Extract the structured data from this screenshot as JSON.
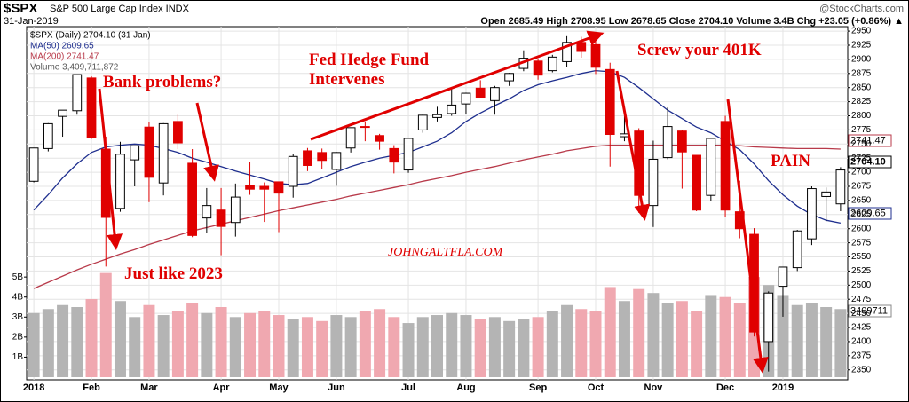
{
  "chart_data": {
    "type": "candlestick",
    "title": "$SPX",
    "subtitle": "S&P 500 Large Cap Index INDX",
    "source": "@StockCharts.com",
    "date": "31-Jan-2019",
    "quote": "Open 2685.49 High 2708.95 Low 2678.65 Close 2704.10 Volume 3.4B Chg +23.05 (+0.86%) ▲",
    "legend": [
      "$SPX (Daily) 2704.10 (31 Jan)",
      "MA(50) 2609.65",
      "MA(200) 2741.47",
      "Volume 3,409,711,872"
    ],
    "price_labels": [
      "2741.47",
      "2704.10",
      "2609.65",
      "3409711"
    ],
    "annotations": [
      "Bank problems?",
      "Just like 2023",
      "Fed Hedge Fund",
      "Intervenes",
      "Screw your 401K",
      "PAIN",
      "JOHNGALTFLA.COM"
    ],
    "categories": [
      "2018",
      null,
      null,
      null,
      "Feb",
      null,
      null,
      null,
      "Mar",
      null,
      null,
      null,
      null,
      "Apr",
      null,
      null,
      null,
      "May",
      null,
      null,
      null,
      "Jun",
      null,
      null,
      null,
      null,
      "Jul",
      null,
      null,
      null,
      "Aug",
      null,
      null,
      null,
      null,
      "Sep",
      null,
      null,
      null,
      "Oct",
      null,
      null,
      null,
      "Nov",
      null,
      null,
      null,
      null,
      "Dec",
      null,
      null,
      null,
      "2019",
      null,
      null,
      null,
      null
    ],
    "open": [
      2684,
      2742,
      2799,
      2809,
      2867,
      2741,
      2636,
      2722,
      2780,
      2681,
      2790,
      2716,
      2619,
      2633,
      2611,
      2676,
      2675,
      2683,
      2675,
      2738,
      2735,
      2705,
      2743,
      2781,
      2765,
      2742,
      2704,
      2775,
      2797,
      2804,
      2821,
      2849,
      2827,
      2862,
      2884,
      2897,
      2880,
      2896,
      2930,
      2926,
      2882,
      2763,
      2773,
      2641,
      2726,
      2773,
      2730,
      2659,
      2790,
      2630,
      2590,
      2400,
      2498,
      2531,
      2582,
      2657,
      2644
    ],
    "high": [
      2743,
      2787,
      2807,
      2873,
      2870,
      2763,
      2754,
      2747,
      2789,
      2787,
      2802,
      2741,
      2672,
      2672,
      2680,
      2718,
      2682,
      2682,
      2732,
      2743,
      2742,
      2736,
      2779,
      2790,
      2768,
      2748,
      2760,
      2802,
      2816,
      2848,
      2841,
      2863,
      2853,
      2876,
      2916,
      2900,
      2908,
      2941,
      2940,
      2939,
      2894,
      2816,
      2778,
      2756,
      2815,
      2775,
      2730,
      2760,
      2800,
      2685,
      2601,
      2489,
      2532,
      2598,
      2675,
      2673,
      2709
    ],
    "low": [
      2682,
      2737,
      2763,
      2802,
      2759,
      2533,
      2630,
      2675,
      2647,
      2659,
      2741,
      2585,
      2593,
      2553,
      2586,
      2660,
      2612,
      2594,
      2655,
      2702,
      2706,
      2676,
      2735,
      2755,
      2740,
      2698,
      2699,
      2770,
      2790,
      2800,
      2803,
      2833,
      2802,
      2853,
      2879,
      2864,
      2877,
      2886,
      2903,
      2874,
      2710,
      2755,
      2628,
      2603,
      2723,
      2671,
      2631,
      2649,
      2621,
      2583,
      2409,
      2347,
      2444,
      2525,
      2571,
      2613,
      2631
    ],
    "close": [
      2743,
      2786,
      2810,
      2873,
      2762,
      2620,
      2732,
      2747,
      2691,
      2786,
      2752,
      2588,
      2641,
      2604,
      2656,
      2670,
      2670,
      2663,
      2728,
      2712,
      2721,
      2735,
      2779,
      2780,
      2755,
      2718,
      2760,
      2801,
      2802,
      2819,
      2840,
      2833,
      2850,
      2875,
      2902,
      2872,
      2904,
      2930,
      2914,
      2886,
      2767,
      2768,
      2659,
      2723,
      2781,
      2736,
      2633,
      2760,
      2633,
      2600,
      2417,
      2486,
      2532,
      2596,
      2671,
      2665,
      2704
    ],
    "up_color": "#000000",
    "down_color": "#e00000",
    "series": [
      {
        "name": "MA(50)",
        "color": "#1f2f8f",
        "values": [
          2633,
          2660,
          2690,
          2715,
          2735,
          2745,
          2748,
          2750,
          2748,
          2742,
          2735,
          2725,
          2718,
          2710,
          2702,
          2695,
          2688,
          2680,
          2678,
          2680,
          2690,
          2700,
          2710,
          2718,
          2725,
          2730,
          2735,
          2745,
          2755,
          2770,
          2790,
          2805,
          2818,
          2830,
          2845,
          2855,
          2862,
          2868,
          2875,
          2880,
          2878,
          2868,
          2850,
          2830,
          2810,
          2795,
          2780,
          2770,
          2755,
          2740,
          2715,
          2685,
          2660,
          2640,
          2625,
          2615,
          2610
        ]
      },
      {
        "name": "MA(200)",
        "color": "#b83a4a",
        "values": [
          2494,
          2505,
          2516,
          2527,
          2537,
          2546,
          2555,
          2563,
          2572,
          2580,
          2588,
          2596,
          2602,
          2608,
          2614,
          2620,
          2626,
          2632,
          2637,
          2642,
          2647,
          2652,
          2658,
          2663,
          2668,
          2673,
          2678,
          2684,
          2689,
          2694,
          2700,
          2705,
          2710,
          2716,
          2722,
          2727,
          2732,
          2738,
          2742,
          2746,
          2748,
          2748,
          2748,
          2748,
          2748,
          2748,
          2748,
          2748,
          2748,
          2747,
          2745,
          2744,
          2743,
          2742,
          2742,
          2742,
          2741
        ]
      }
    ],
    "volume": {
      "name": "Volume",
      "up_color": "#b4b4b4",
      "down_color": "#f0a8b0",
      "values": [
        3.2,
        3.4,
        3.6,
        3.5,
        3.9,
        5.2,
        3.8,
        3.0,
        3.6,
        3.1,
        3.3,
        3.7,
        3.2,
        3.5,
        3.0,
        3.2,
        3.3,
        3.1,
        2.9,
        3.0,
        2.8,
        3.1,
        3.0,
        3.3,
        3.4,
        3.0,
        2.7,
        3.0,
        3.1,
        3.2,
        3.1,
        2.9,
        3.0,
        2.8,
        2.9,
        3.0,
        3.3,
        3.6,
        3.4,
        3.3,
        4.5,
        3.8,
        4.4,
        4.2,
        3.7,
        3.8,
        3.3,
        4.1,
        4.0,
        3.7,
        5.0,
        4.6,
        4.1,
        3.6,
        3.7,
        3.5,
        3.4
      ]
    },
    "ylim": [
      2337,
      2958
    ],
    "yticks": [
      2350,
      2375,
      2400,
      2425,
      2450,
      2475,
      2500,
      2525,
      2550,
      2575,
      2600,
      2625,
      2650,
      2675,
      2700,
      2725,
      2750,
      2775,
      2800,
      2825,
      2850,
      2875,
      2900,
      2925,
      2950
    ],
    "y2lim": [
      0,
      17.5
    ],
    "y2ticks": [
      {
        "value": 1,
        "label": "1B"
      },
      {
        "value": 2,
        "label": "2B"
      },
      {
        "value": 3,
        "label": "3B"
      },
      {
        "value": 4,
        "label": "4B"
      },
      {
        "value": 5,
        "label": "5B"
      }
    ],
    "grid": true
  }
}
